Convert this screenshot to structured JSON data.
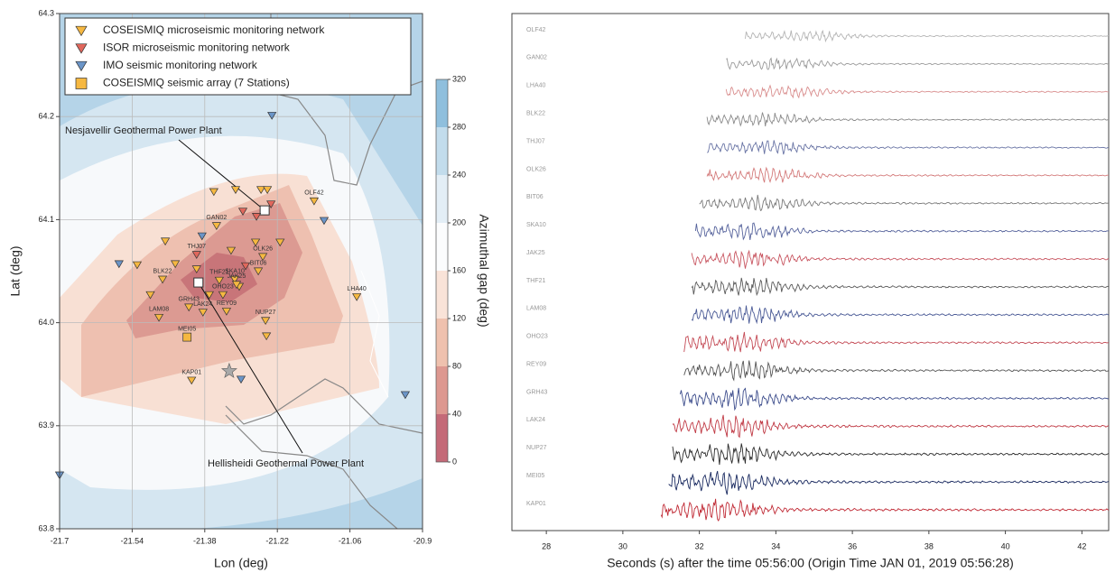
{
  "chart_data": [
    {
      "type": "map",
      "xlabel": "Lon (deg)",
      "ylabel": "Lat (deg)",
      "xlim": [
        -21.7,
        -20.9
      ],
      "ylim": [
        63.8,
        64.3
      ],
      "xticks": [
        -21.7,
        -21.54,
        -21.38,
        -21.22,
        -21.06,
        -20.9
      ],
      "yticks": [
        63.8,
        63.9,
        {
          "value": 64,
          "label": "64.0"
        },
        64.1,
        64.2,
        64.3
      ],
      "grid": true,
      "series": [
        {
          "name": "COSEISMIQ microseismic monitoring network",
          "color": "#f6b841",
          "marker": "triangle",
          "x": [
            -21.36,
            -21.312,
            -21.256,
            -21.242,
            -21.354,
            -21.467,
            -21.322,
            -21.252,
            -21.268,
            -21.214,
            -21.529,
            -21.445,
            -21.398,
            -21.473,
            -21.5,
            -21.415,
            -21.314,
            -21.348,
            -21.304,
            -21.37,
            -21.34,
            -21.332,
            -21.481,
            -21.384,
            -21.246,
            -21.244,
            -21.409,
            -21.045,
            -21.139,
            -21.262,
            -21.31
          ],
          "y": [
            64.127,
            64.129,
            64.129,
            64.129,
            64.094,
            64.079,
            64.07,
            64.064,
            64.078,
            64.078,
            64.056,
            64.057,
            64.052,
            64.042,
            64.027,
            64.015,
            64.042,
            64.041,
            64.035,
            64.027,
            64.027,
            64.011,
            64.005,
            64.01,
            64.002,
            63.987,
            63.944,
            64.025,
            64.118,
            64.05,
            64.037
          ],
          "labels": [
            null,
            null,
            null,
            null,
            "GAN02",
            null,
            null,
            "OLK26",
            null,
            null,
            null,
            null,
            null,
            "BLK22",
            null,
            "GRH43",
            "SKA10",
            "THF21",
            null,
            null,
            "OHO23",
            "REY09",
            "LAM08",
            "LAK24",
            "NUP27",
            null,
            "KAP01",
            "LHA40",
            "OLF42",
            "BIT06",
            "JAK25"
          ]
        },
        {
          "name": "ISOR microseismic monitoring network",
          "color": "#e0675c",
          "marker": "triangle",
          "x": [
            -21.296,
            -21.266,
            -21.234,
            -21.398,
            -21.29
          ],
          "y": [
            64.108,
            64.103,
            64.115,
            64.066,
            64.055
          ],
          "labels": [
            null,
            null,
            null,
            "THJ07",
            null
          ]
        },
        {
          "name": "IMO seismic monitoring network",
          "color": "#6b95c8",
          "marker": "triangle",
          "x": [
            -21.232,
            -21.117,
            -21.386,
            -21.569,
            -21.3,
            -20.938,
            -21.7
          ],
          "y": [
            64.201,
            64.099,
            64.084,
            64.057,
            63.945,
            63.93,
            63.852
          ],
          "labels": [
            null,
            null,
            null,
            null,
            null,
            null,
            null
          ]
        },
        {
          "name": "COSEISMIQ seismic array (7 Stations)",
          "color": "#f6b841",
          "marker": "square",
          "x": [
            -21.419
          ],
          "y": [
            63.986
          ],
          "labels": [
            "MEI05"
          ]
        }
      ],
      "annotations": [
        {
          "text": "Nesjavellir Geothermal Power Plant",
          "x": -21.248,
          "y": 64.109
        },
        {
          "text": "Hellisheidi Geothermal Power Plant",
          "x": -21.394,
          "y": 64.039
        }
      ],
      "star": {
        "x": -21.326,
        "y": 63.953,
        "color": "#a9a9a9"
      },
      "colorbar": {
        "label": "Azimuthal gap (deg)",
        "lim": [
          0,
          320
        ],
        "ticks": [
          0,
          40,
          80,
          120,
          160,
          200,
          240,
          280,
          320
        ],
        "colors": [
          "#c46a78",
          "#dd9890",
          "#efc1ae",
          "#f9e3d8",
          "#fbfcfd",
          "#e3eef6",
          "#c2dcec",
          "#8fbfdd"
        ]
      }
    },
    {
      "type": "seismogram",
      "xlabel": "Seconds (s) after the time 05:56:00 (Origin Time JAN 01, 2019 05:56:28)",
      "xlim": [
        27.1,
        42.7
      ],
      "xticks": [
        28,
        30,
        32,
        34,
        36,
        38,
        40,
        42
      ],
      "series": [
        {
          "name": "OLF42",
          "color": "#b4b4b4",
          "onset": 33.2
        },
        {
          "name": "GAN02",
          "color": "#9a9a9a",
          "onset": 32.7
        },
        {
          "name": "LHA40",
          "color": "#d98e8e",
          "onset": 32.7
        },
        {
          "name": "BLK22",
          "color": "#8a8a8a",
          "onset": 32.2
        },
        {
          "name": "THJ07",
          "color": "#6a75a5",
          "onset": 32.2
        },
        {
          "name": "OLK26",
          "color": "#d47b7b",
          "onset": 32.2
        },
        {
          "name": "BIT06",
          "color": "#7a7a7a",
          "onset": 32.0
        },
        {
          "name": "SKA10",
          "color": "#56639c",
          "onset": 31.9
        },
        {
          "name": "JAK25",
          "color": "#c85560",
          "onset": 31.8
        },
        {
          "name": "THF21",
          "color": "#5a5a5a",
          "onset": 31.8
        },
        {
          "name": "LAM08",
          "color": "#4a5a96",
          "onset": 31.8
        },
        {
          "name": "OHO23",
          "color": "#c44a55",
          "onset": 31.6
        },
        {
          "name": "REY09",
          "color": "#555555",
          "onset": 31.6
        },
        {
          "name": "GRH43",
          "color": "#3d4d8c",
          "onset": 31.5
        },
        {
          "name": "LAK24",
          "color": "#c03a45",
          "onset": 31.3
        },
        {
          "name": "NUP27",
          "color": "#2a2a2a",
          "onset": 31.3
        },
        {
          "name": "MEI05",
          "color": "#1a2a60",
          "onset": 31.2
        },
        {
          "name": "KAP01",
          "color": "#c02a35",
          "onset": 31.0
        }
      ]
    }
  ]
}
